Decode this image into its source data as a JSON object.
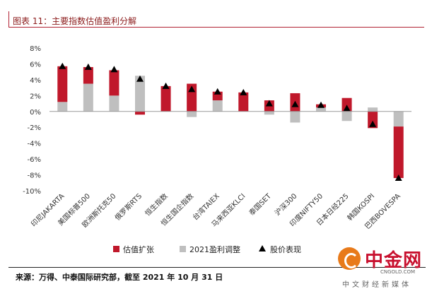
{
  "header": {
    "title": "图表 11：主要指数估值盈利分解"
  },
  "footer": {
    "source": "来源：万得、中泰国际研究部，截至 2021 年 10 月 31 日"
  },
  "watermark": {
    "name": "中金网",
    "url": "CNGOLD.COM",
    "sub": "中文财经新媒体"
  },
  "colors": {
    "valuation": "#c0182b",
    "earnings": "#bfbfbf",
    "marker": "#000000",
    "accent": "#b22234"
  },
  "chart_data": {
    "type": "bar",
    "stacked": true,
    "categories": [
      "印尼JAKARTA",
      "美国标普500",
      "欧洲斯托克50",
      "俄罗斯RTS",
      "恒生指数",
      "恒生国企指数",
      "台湾TAIEX",
      "马来西亚KLCI",
      "泰国SET",
      "沪深300",
      "印度NIFTY50",
      "日本日经225",
      "韩国KOSPI",
      "巴西BOVESPA"
    ],
    "series": [
      {
        "name": "估值扩张",
        "type": "bar",
        "values": [
          4.5,
          2.1,
          3.2,
          -0.4,
          3.2,
          3.5,
          1.1,
          2.4,
          1.4,
          2.3,
          0.4,
          1.7,
          -2.1,
          -6.5
        ]
      },
      {
        "name": "2021盈利调整",
        "type": "bar",
        "values": [
          1.2,
          3.5,
          2.0,
          4.5,
          0.0,
          -0.7,
          1.4,
          0.0,
          -0.4,
          -1.4,
          0.5,
          -1.2,
          0.5,
          -1.9
        ]
      },
      {
        "name": "股价表现",
        "type": "marker",
        "values": [
          5.7,
          5.6,
          5.3,
          4.1,
          3.2,
          2.8,
          2.5,
          2.4,
          1.0,
          0.9,
          0.8,
          0.4,
          -1.6,
          -8.4
        ]
      }
    ],
    "yticks": [
      "8%",
      "6%",
      "4%",
      "2%",
      "0%",
      "-2%",
      "-4%",
      "-6%",
      "-8%",
      "-10%"
    ],
    "ylim": [
      -10,
      8
    ],
    "legend_position": "bottom",
    "grid": false
  }
}
